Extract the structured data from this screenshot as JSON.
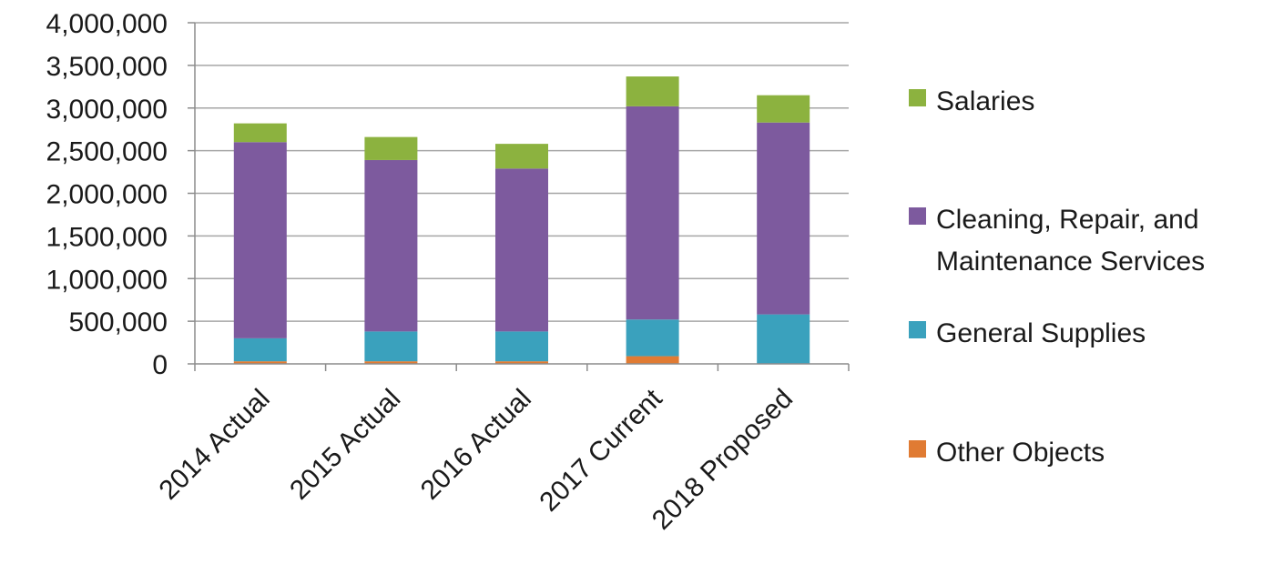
{
  "chart_data": {
    "type": "bar",
    "stacked": true,
    "categories": [
      "2014 Actual",
      "2015 Actual",
      "2016 Actual",
      "2017 Current",
      "2018 Proposed"
    ],
    "series": [
      {
        "name": "Other Objects",
        "color": "#e07b33",
        "values": [
          30000,
          30000,
          30000,
          90000,
          0
        ]
      },
      {
        "name": "General Supplies",
        "color": "#3aa1bd",
        "values": [
          270000,
          350000,
          350000,
          430000,
          580000
        ]
      },
      {
        "name": "Cleaning, Repair, and Maintenance Services",
        "color": "#7d5a9e",
        "values": [
          2300000,
          2010000,
          1910000,
          2500000,
          2250000
        ]
      },
      {
        "name": "Salaries",
        "color": "#8cb23f",
        "values": [
          220000,
          270000,
          290000,
          350000,
          320000
        ]
      }
    ],
    "y_ticks": [
      "0",
      "500,000",
      "1,000,000",
      "1,500,000",
      "2,000,000",
      "2,500,000",
      "3,000,000",
      "3,500,000",
      "4,000,000"
    ],
    "ylim": [
      0,
      4000000
    ],
    "grid": true,
    "legend_position": "right",
    "legend_order": [
      "Salaries",
      "Cleaning, Repair, and Maintenance Services",
      "General Supplies",
      "Other Objects"
    ],
    "legend_labels": {
      "Salaries": [
        "Salaries"
      ],
      "Cleaning, Repair, and Maintenance Services": [
        "Cleaning, Repair, and",
        "Maintenance Services"
      ],
      "General Supplies": [
        "General Supplies"
      ],
      "Other Objects": [
        "Other Objects"
      ]
    },
    "title": "",
    "xlabel": "",
    "ylabel": ""
  }
}
